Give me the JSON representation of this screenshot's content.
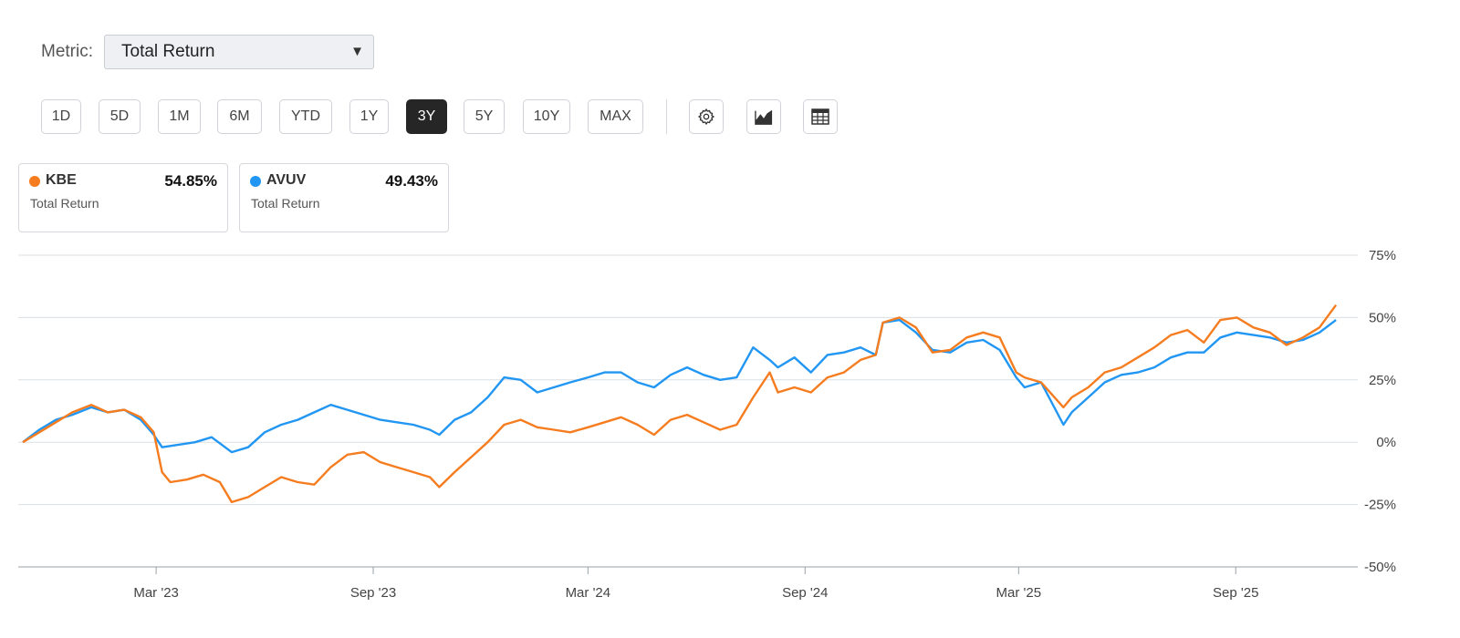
{
  "metric": {
    "label": "Metric:",
    "selected": "Total Return"
  },
  "ranges": [
    {
      "label": "1D",
      "active": false
    },
    {
      "label": "5D",
      "active": false
    },
    {
      "label": "1M",
      "active": false
    },
    {
      "label": "6M",
      "active": false
    },
    {
      "label": "YTD",
      "active": false
    },
    {
      "label": "1Y",
      "active": false
    },
    {
      "label": "3Y",
      "active": true
    },
    {
      "label": "5Y",
      "active": false
    },
    {
      "label": "10Y",
      "active": false
    },
    {
      "label": "MAX",
      "active": false
    }
  ],
  "tools": [
    {
      "name": "settings-button",
      "icon": "gear-icon"
    },
    {
      "name": "chart-type-button",
      "icon": "mountain-chart-icon"
    },
    {
      "name": "table-view-button",
      "icon": "table-icon"
    }
  ],
  "legend": [
    {
      "ticker": "KBE",
      "value": "54.85%",
      "sub": "Total Return",
      "color": "#f57c1f"
    },
    {
      "ticker": "AVUV",
      "value": "49.43%",
      "sub": "Total Return",
      "color": "#2196f3"
    }
  ],
  "chart_data": {
    "type": "line",
    "ylabel_format": "%",
    "ylim": [
      -50,
      75
    ],
    "yticks": [
      75,
      50,
      25,
      0,
      -25,
      -50
    ],
    "ytick_labels": [
      "75%",
      "50%",
      "25%",
      "0%",
      "-25%",
      "-50%"
    ],
    "xlim": [
      "2022-11-08",
      "2025-11-28"
    ],
    "xticks": [
      "2023-03-01",
      "2023-09-01",
      "2024-03-01",
      "2024-09-01",
      "2025-03-01",
      "2025-09-01"
    ],
    "xtick_labels": [
      "Mar '23",
      "Sep '23",
      "Mar '24",
      "Sep '24",
      "Mar '25",
      "Sep '25"
    ],
    "grid": true,
    "series": [
      {
        "name": "KBE",
        "color": "#f57c1f",
        "points": [
          [
            "2022-11-08",
            0
          ],
          [
            "2022-11-22",
            4
          ],
          [
            "2022-12-06",
            8
          ],
          [
            "2022-12-20",
            12
          ],
          [
            "2023-01-05",
            15
          ],
          [
            "2023-01-19",
            12
          ],
          [
            "2023-02-02",
            13
          ],
          [
            "2023-02-16",
            10
          ],
          [
            "2023-02-27",
            4
          ],
          [
            "2023-03-06",
            -12
          ],
          [
            "2023-03-13",
            -16
          ],
          [
            "2023-03-27",
            -15
          ],
          [
            "2023-04-10",
            -13
          ],
          [
            "2023-04-24",
            -16
          ],
          [
            "2023-05-04",
            -24
          ],
          [
            "2023-05-18",
            -22
          ],
          [
            "2023-06-01",
            -18
          ],
          [
            "2023-06-15",
            -14
          ],
          [
            "2023-06-29",
            -16
          ],
          [
            "2023-07-13",
            -17
          ],
          [
            "2023-07-27",
            -10
          ],
          [
            "2023-08-10",
            -5
          ],
          [
            "2023-08-24",
            -4
          ],
          [
            "2023-09-07",
            -8
          ],
          [
            "2023-09-21",
            -10
          ],
          [
            "2023-10-05",
            -12
          ],
          [
            "2023-10-19",
            -14
          ],
          [
            "2023-10-27",
            -18
          ],
          [
            "2023-11-09",
            -12
          ],
          [
            "2023-11-23",
            -6
          ],
          [
            "2023-12-07",
            0
          ],
          [
            "2023-12-21",
            7
          ],
          [
            "2024-01-04",
            9
          ],
          [
            "2024-01-18",
            6
          ],
          [
            "2024-02-01",
            5
          ],
          [
            "2024-02-15",
            4
          ],
          [
            "2024-03-01",
            6
          ],
          [
            "2024-03-15",
            8
          ],
          [
            "2024-03-29",
            10
          ],
          [
            "2024-04-12",
            7
          ],
          [
            "2024-04-26",
            3
          ],
          [
            "2024-05-10",
            9
          ],
          [
            "2024-05-24",
            11
          ],
          [
            "2024-06-07",
            8
          ],
          [
            "2024-06-21",
            5
          ],
          [
            "2024-07-05",
            7
          ],
          [
            "2024-07-19",
            18
          ],
          [
            "2024-08-02",
            28
          ],
          [
            "2024-08-09",
            20
          ],
          [
            "2024-08-23",
            22
          ],
          [
            "2024-09-06",
            20
          ],
          [
            "2024-09-20",
            26
          ],
          [
            "2024-10-04",
            28
          ],
          [
            "2024-10-18",
            33
          ],
          [
            "2024-10-31",
            35
          ],
          [
            "2024-11-06",
            48
          ],
          [
            "2024-11-20",
            50
          ],
          [
            "2024-12-04",
            46
          ],
          [
            "2024-12-18",
            36
          ],
          [
            "2025-01-02",
            37
          ],
          [
            "2025-01-16",
            42
          ],
          [
            "2025-01-30",
            44
          ],
          [
            "2025-02-13",
            42
          ],
          [
            "2025-02-27",
            28
          ],
          [
            "2025-03-06",
            26
          ],
          [
            "2025-03-20",
            24
          ],
          [
            "2025-04-08",
            14
          ],
          [
            "2025-04-15",
            18
          ],
          [
            "2025-04-29",
            22
          ],
          [
            "2025-05-13",
            28
          ],
          [
            "2025-05-27",
            30
          ],
          [
            "2025-06-10",
            34
          ],
          [
            "2025-06-24",
            38
          ],
          [
            "2025-07-08",
            43
          ],
          [
            "2025-07-22",
            45
          ],
          [
            "2025-08-05",
            40
          ],
          [
            "2025-08-19",
            49
          ],
          [
            "2025-09-02",
            50
          ],
          [
            "2025-09-16",
            46
          ],
          [
            "2025-09-30",
            44
          ],
          [
            "2025-10-14",
            39
          ],
          [
            "2025-10-28",
            42
          ],
          [
            "2025-11-11",
            46
          ],
          [
            "2025-11-25",
            55
          ]
        ]
      },
      {
        "name": "AVUV",
        "color": "#2196f3",
        "points": [
          [
            "2022-11-08",
            0
          ],
          [
            "2022-11-22",
            5
          ],
          [
            "2022-12-06",
            9
          ],
          [
            "2022-12-20",
            11
          ],
          [
            "2023-01-05",
            14
          ],
          [
            "2023-01-19",
            12
          ],
          [
            "2023-02-02",
            13
          ],
          [
            "2023-02-16",
            9
          ],
          [
            "2023-02-27",
            3
          ],
          [
            "2023-03-06",
            -2
          ],
          [
            "2023-03-20",
            -1
          ],
          [
            "2023-04-03",
            0
          ],
          [
            "2023-04-17",
            2
          ],
          [
            "2023-05-04",
            -4
          ],
          [
            "2023-05-18",
            -2
          ],
          [
            "2023-06-01",
            4
          ],
          [
            "2023-06-15",
            7
          ],
          [
            "2023-06-29",
            9
          ],
          [
            "2023-07-13",
            12
          ],
          [
            "2023-07-27",
            15
          ],
          [
            "2023-08-10",
            13
          ],
          [
            "2023-08-24",
            11
          ],
          [
            "2023-09-07",
            9
          ],
          [
            "2023-09-21",
            8
          ],
          [
            "2023-10-05",
            7
          ],
          [
            "2023-10-19",
            5
          ],
          [
            "2023-10-27",
            3
          ],
          [
            "2023-11-09",
            9
          ],
          [
            "2023-11-23",
            12
          ],
          [
            "2023-12-07",
            18
          ],
          [
            "2023-12-21",
            26
          ],
          [
            "2024-01-04",
            25
          ],
          [
            "2024-01-18",
            20
          ],
          [
            "2024-02-01",
            22
          ],
          [
            "2024-02-15",
            24
          ],
          [
            "2024-03-01",
            26
          ],
          [
            "2024-03-15",
            28
          ],
          [
            "2024-03-29",
            28
          ],
          [
            "2024-04-12",
            24
          ],
          [
            "2024-04-26",
            22
          ],
          [
            "2024-05-10",
            27
          ],
          [
            "2024-05-24",
            30
          ],
          [
            "2024-06-07",
            27
          ],
          [
            "2024-06-21",
            25
          ],
          [
            "2024-07-05",
            26
          ],
          [
            "2024-07-19",
            38
          ],
          [
            "2024-08-02",
            33
          ],
          [
            "2024-08-09",
            30
          ],
          [
            "2024-08-23",
            34
          ],
          [
            "2024-09-06",
            28
          ],
          [
            "2024-09-20",
            35
          ],
          [
            "2024-10-04",
            36
          ],
          [
            "2024-10-18",
            38
          ],
          [
            "2024-10-31",
            35
          ],
          [
            "2024-11-06",
            48
          ],
          [
            "2024-11-20",
            49
          ],
          [
            "2024-12-04",
            44
          ],
          [
            "2024-12-18",
            37
          ],
          [
            "2025-01-02",
            36
          ],
          [
            "2025-01-16",
            40
          ],
          [
            "2025-01-30",
            41
          ],
          [
            "2025-02-13",
            37
          ],
          [
            "2025-02-27",
            26
          ],
          [
            "2025-03-06",
            22
          ],
          [
            "2025-03-20",
            24
          ],
          [
            "2025-04-08",
            7
          ],
          [
            "2025-04-15",
            12
          ],
          [
            "2025-04-29",
            18
          ],
          [
            "2025-05-13",
            24
          ],
          [
            "2025-05-27",
            27
          ],
          [
            "2025-06-10",
            28
          ],
          [
            "2025-06-24",
            30
          ],
          [
            "2025-07-08",
            34
          ],
          [
            "2025-07-22",
            36
          ],
          [
            "2025-08-05",
            36
          ],
          [
            "2025-08-19",
            42
          ],
          [
            "2025-09-02",
            44
          ],
          [
            "2025-09-16",
            43
          ],
          [
            "2025-09-30",
            42
          ],
          [
            "2025-10-14",
            40
          ],
          [
            "2025-10-28",
            41
          ],
          [
            "2025-11-11",
            44
          ],
          [
            "2025-11-25",
            49
          ]
        ]
      }
    ]
  }
}
